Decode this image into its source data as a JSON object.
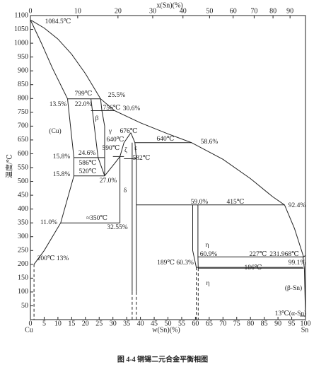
{
  "chart_data": {
    "type": "phase",
    "title": "图 4-4   铜锡二元合金平衡相图",
    "ylabel": "温度/℃",
    "xlabel": "w(Sn)(%)",
    "x2label": "x(Sn)(%)",
    "left_end": "Cu",
    "right_end": "Sn",
    "xlim": [
      0,
      100
    ],
    "ylim": [
      0,
      1100
    ],
    "xticks": [
      0,
      5,
      10,
      15,
      20,
      25,
      30,
      35,
      40,
      45,
      50,
      55,
      60,
      65,
      70,
      75,
      80,
      85,
      90,
      95,
      100
    ],
    "yticks": [
      50,
      100,
      150,
      200,
      250,
      300,
      350,
      400,
      450,
      500,
      550,
      600,
      650,
      700,
      750,
      800,
      850,
      900,
      950,
      1000,
      1050,
      1100
    ],
    "x2ticks": [
      0,
      10,
      20,
      30,
      40,
      50,
      60,
      70,
      80,
      90
    ],
    "color": "#222",
    "annotations": [
      "1084.5℃",
      "799℃",
      "25.5%",
      "13.5%",
      "22.0%",
      "756℃",
      "30.6%",
      "β",
      "(Cu)",
      "γ",
      "676℃",
      "640℃",
      "640℃",
      "58.6%",
      "590℃",
      "ζ",
      "ε",
      "582℃",
      "15.8%",
      "24.6%",
      "586℃",
      "15.8%",
      "520℃",
      "27.0%",
      "δ",
      "59.0%",
      "415℃",
      "92.4%",
      "11.0%",
      "≈350℃",
      "32.55%",
      "η",
      "60.9%",
      "227℃",
      "231.968℃",
      "200℃ 13%",
      "189℃ 60.3%",
      "99.1%",
      "186℃",
      "η",
      "(β-Sn)",
      "13℃(α-Sn)"
    ],
    "series": [
      {
        "x": [
          0,
          5,
          10,
          15,
          20,
          25.5,
          30.6,
          40,
          50,
          58.6,
          70,
          80,
          88,
          92.4,
          96,
          99.3,
          100
        ],
        "values": [
          1084.5,
          1055,
          1015,
          960,
          890,
          799,
          756,
          712,
          672,
          640,
          580,
          510,
          445,
          415,
          330,
          227,
          231.968
        ]
      },
      {
        "x": [
          0,
          4,
          8,
          13.5
        ],
        "values": [
          1084.5,
          1000,
          910,
          799
        ]
      },
      {
        "x": [
          13.5,
          15.8,
          15.8,
          11,
          5,
          1.3
        ],
        "values": [
          799,
          586,
          520,
          350,
          250,
          200
        ]
      },
      {
        "x": [
          1.3,
          1.3
        ],
        "values": [
          200,
          0
        ],
        "dashed": true
      },
      {
        "x": [
          13.5,
          25.5
        ],
        "values": [
          799,
          799
        ]
      },
      {
        "x": [
          22,
          30.6
        ],
        "values": [
          756,
          756
        ]
      },
      {
        "x": [
          22,
          24.6
        ],
        "values": [
          799,
          586
        ]
      },
      {
        "x": [
          25.5,
          26,
          27,
          27
        ],
        "values": [
          799,
          756,
          700,
          520
        ]
      },
      {
        "x": [
          15.8,
          27
        ],
        "values": [
          586,
          586
        ]
      },
      {
        "x": [
          15.8,
          27
        ],
        "values": [
          520,
          520
        ]
      },
      {
        "x": [
          24.6,
          27
        ],
        "values": [
          586,
          520
        ]
      },
      {
        "x": [
          27,
          31,
          32.55,
          34,
          36.5
        ],
        "values": [
          520,
          570,
          590,
          640,
          676
        ]
      },
      {
        "x": [
          36.5,
          38,
          38.5
        ],
        "values": [
          676,
          640,
          582
        ]
      },
      {
        "x": [
          30,
          34
        ],
        "values": [
          590,
          590
        ]
      },
      {
        "x": [
          38,
          58.6
        ],
        "values": [
          640,
          640
        ]
      },
      {
        "x": [
          34,
          38.5
        ],
        "values": [
          582,
          582
        ]
      },
      {
        "x": [
          32.55,
          32.55
        ],
        "values": [
          590,
          350
        ]
      },
      {
        "x": [
          11,
          32.55
        ],
        "values": [
          350,
          350
        ]
      },
      {
        "x": [
          37,
          37
        ],
        "values": [
          640,
          100
        ]
      },
      {
        "x": [
          37,
          37
        ],
        "values": [
          100,
          0
        ],
        "dashed": true
      },
      {
        "x": [
          38.5,
          38.5
        ],
        "values": [
          582,
          100
        ]
      },
      {
        "x": [
          38.5,
          38.5
        ],
        "values": [
          100,
          0
        ],
        "dashed": true
      },
      {
        "x": [
          38.5,
          92.4
        ],
        "values": [
          415,
          415
        ]
      },
      {
        "x": [
          59,
          59,
          60.3
        ],
        "values": [
          415,
          250,
          189
        ]
      },
      {
        "x": [
          60.9,
          60.9,
          61
        ],
        "values": [
          415,
          227,
          186
        ]
      },
      {
        "x": [
          60.3,
          60.3
        ],
        "values": [
          189,
          0
        ],
        "dashed": true
      },
      {
        "x": [
          61,
          61
        ],
        "values": [
          186,
          0
        ],
        "dashed": true
      },
      {
        "x": [
          60.9,
          99.3
        ],
        "values": [
          227,
          227
        ]
      },
      {
        "x": [
          60.3,
          99.1
        ],
        "values": [
          189,
          189
        ]
      },
      {
        "x": [
          61,
          99.3
        ],
        "values": [
          186,
          186
        ]
      },
      {
        "x": [
          99.1,
          99.6,
          100
        ],
        "values": [
          227,
          186,
          13
        ]
      },
      {
        "x": [
          98,
          100
        ],
        "values": [
          13,
          13
        ]
      }
    ]
  }
}
